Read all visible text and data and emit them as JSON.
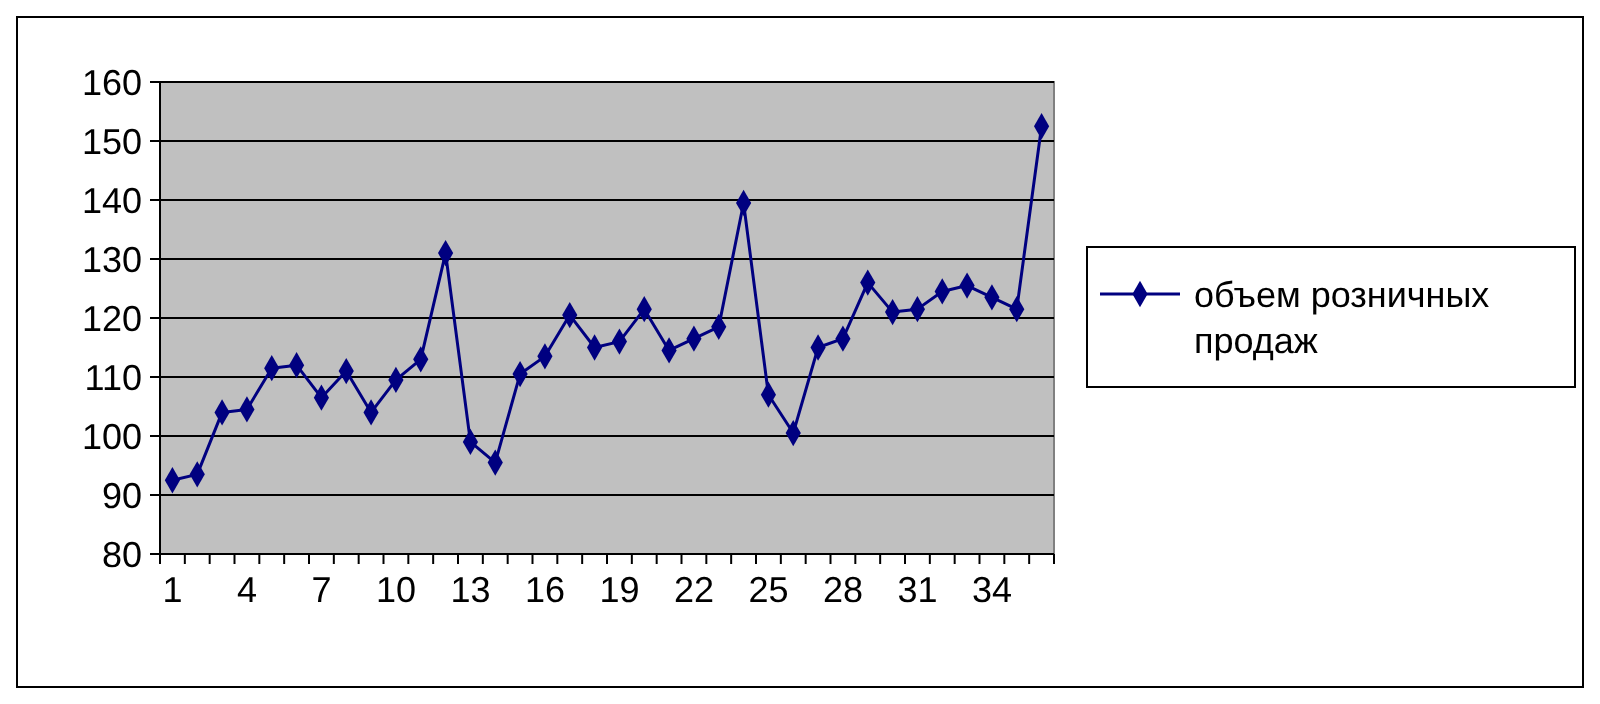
{
  "chart_data": {
    "type": "line",
    "categories": [
      "1",
      null,
      null,
      "4",
      null,
      null,
      "7",
      null,
      null,
      "10",
      null,
      null,
      "13",
      null,
      null,
      "16",
      null,
      null,
      "19",
      null,
      null,
      "22",
      null,
      null,
      "25",
      null,
      null,
      "28",
      null,
      null,
      "31",
      null,
      null,
      "34",
      null,
      null
    ],
    "series": [
      {
        "name": "объем розничных продаж",
        "color": "#000080",
        "values": [
          92.5,
          93.5,
          104,
          104.5,
          111.5,
          112,
          106.5,
          111,
          104,
          109.5,
          113,
          131,
          99,
          95.5,
          110.5,
          113.5,
          120.5,
          115,
          116,
          121.5,
          114.5,
          116.5,
          118.5,
          139.5,
          107,
          100.5,
          115,
          116.5,
          126,
          121,
          121.5,
          124.5,
          125.5,
          123.5,
          121.5,
          152.5
        ]
      }
    ],
    "ylim": [
      80,
      160
    ],
    "yticks": [
      80,
      90,
      100,
      110,
      120,
      130,
      140,
      150,
      160
    ],
    "grid": "y",
    "legend": "right",
    "marker": "diamond"
  }
}
